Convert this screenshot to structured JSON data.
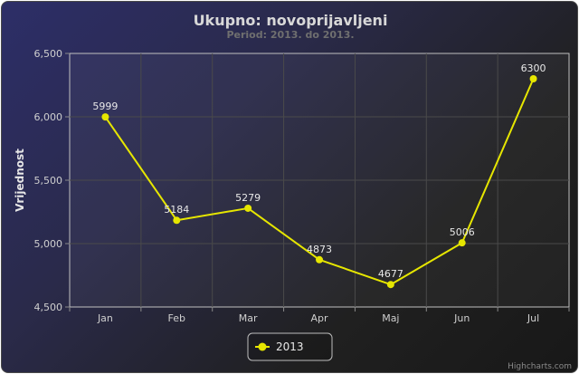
{
  "chart_data": {
    "type": "line",
    "title": "Ukupno: novoprijavljeni",
    "subtitle": "Period: 2013. do 2013.",
    "ylabel": "Vrijednost",
    "xlabel": "",
    "categories": [
      "Jan",
      "Feb",
      "Mar",
      "Apr",
      "Maj",
      "Jun",
      "Jul"
    ],
    "series": [
      {
        "name": "2013",
        "values": [
          5999,
          5184,
          5279,
          4873,
          4677,
          5006,
          6300
        ],
        "color": "#e6e600"
      }
    ],
    "ylim": [
      4500,
      6500
    ],
    "yticks": [
      "4,500",
      "5,000",
      "5,500",
      "6,000",
      "6,500"
    ],
    "ytick_values": [
      4500,
      5000,
      5500,
      6000,
      6500
    ],
    "grid": true,
    "legend_position": "bottom-center",
    "data_labels": true
  },
  "credit": "Highcharts.com",
  "colors": {
    "line": "#e6e600",
    "grid": "#4a4a4a",
    "axis": "#8a8a8a"
  }
}
